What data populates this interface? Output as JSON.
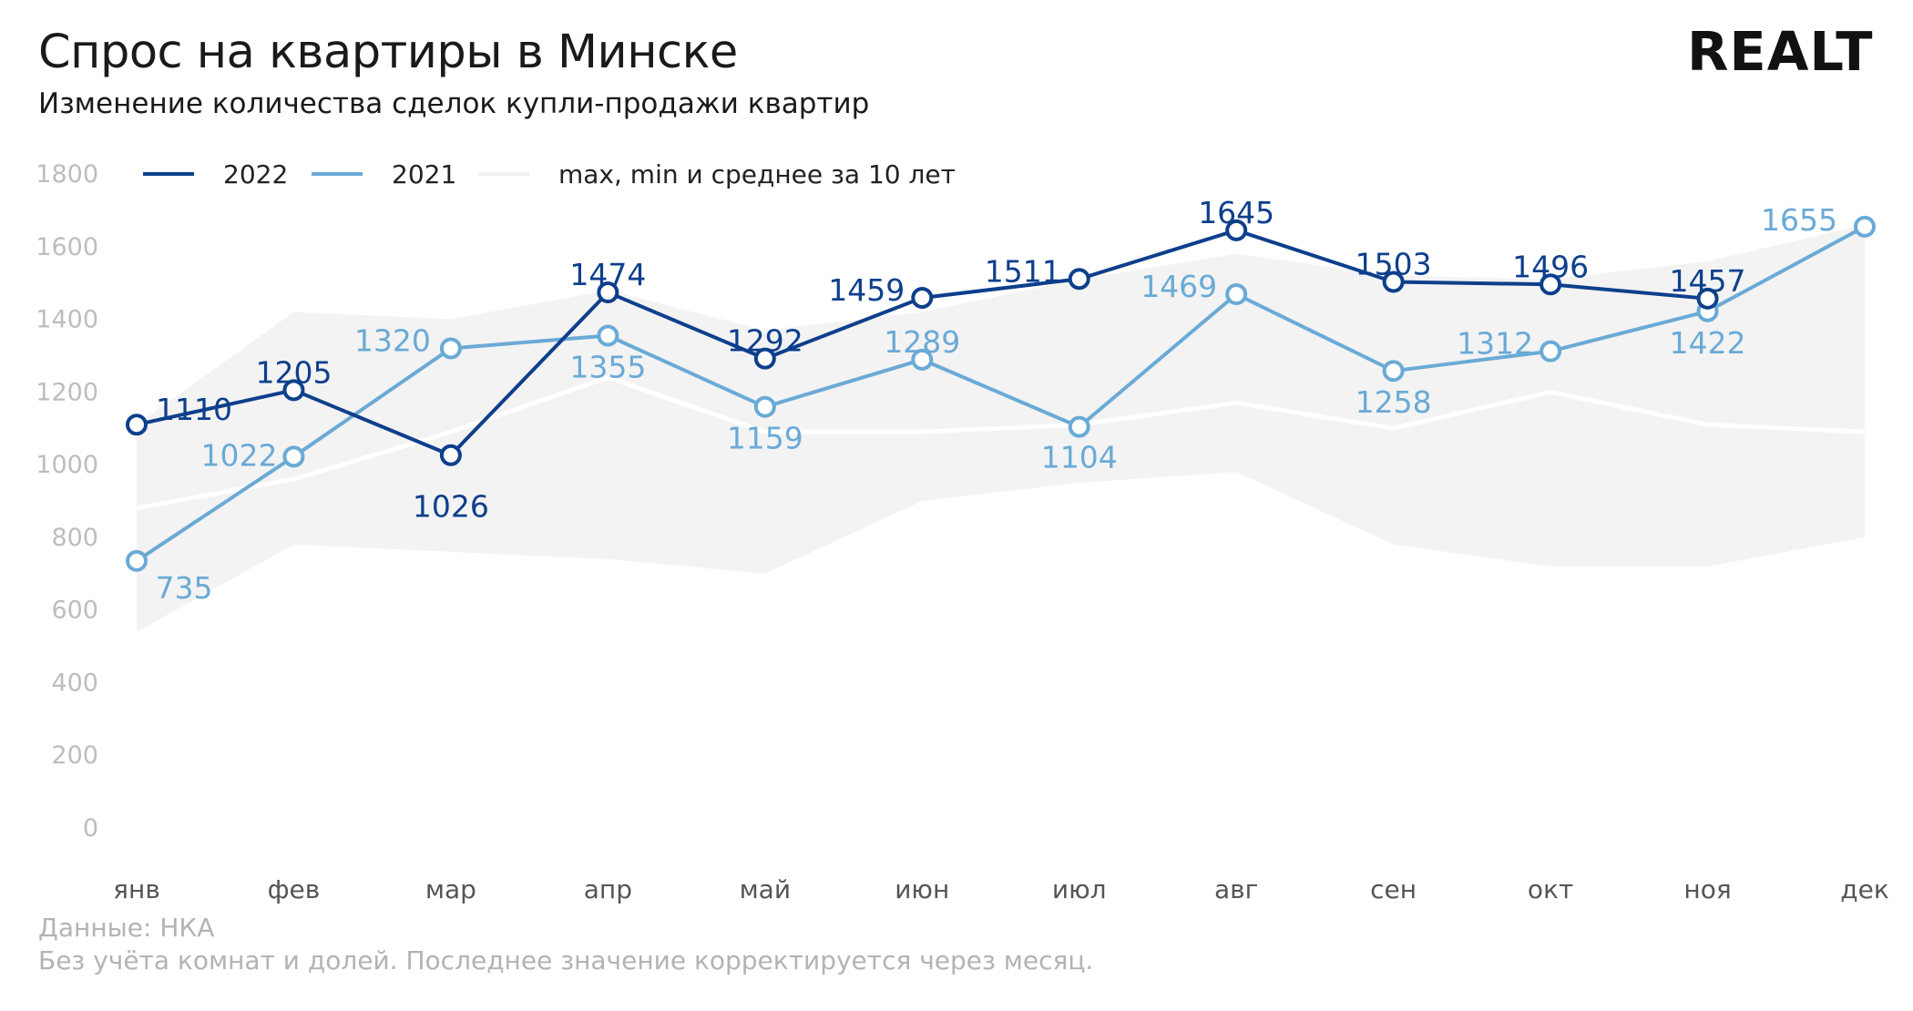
{
  "header": {
    "title": "Спрос на квартиры в Минске",
    "subtitle": "Изменение количества сделок купли-продажи квартир",
    "logo": "REALT"
  },
  "footer": {
    "source": "Данные: НКА",
    "note": "Без учёта комнат и долей. Последнее значение корректируется через месяц."
  },
  "colors": {
    "series_2022": "#0d3f8c",
    "series_2021": "#6aaad6",
    "band": "#f3f3f3",
    "mean_line": "#ffffff"
  },
  "chart_data": {
    "type": "line",
    "title": "Спрос на квартиры в Минске",
    "subtitle": "Изменение количества сделок купли-продажи квартир",
    "categories": [
      "янв",
      "фев",
      "мар",
      "апр",
      "май",
      "июн",
      "июл",
      "авг",
      "сен",
      "окт",
      "ноя",
      "дек"
    ],
    "ylim": [
      0,
      1800
    ],
    "yticks": [
      0,
      200,
      400,
      600,
      800,
      1000,
      1200,
      1400,
      1600,
      1800
    ],
    "grid": false,
    "legend_position": "top-left",
    "legend": [
      "2022",
      "2021",
      "max, min и среднее за 10 лет"
    ],
    "series": [
      {
        "name": "2022",
        "values": [
          1110,
          1205,
          1026,
          1474,
          1292,
          1459,
          1511,
          1645,
          1503,
          1496,
          1457,
          null
        ]
      },
      {
        "name": "2021",
        "values": [
          735,
          1022,
          1320,
          1355,
          1159,
          1289,
          1104,
          1469,
          1258,
          1312,
          1422,
          1655
        ]
      }
    ],
    "band_10y": {
      "name": "max, min и среднее за 10 лет",
      "max": [
        1110,
        1420,
        1400,
        1480,
        1370,
        1420,
        1510,
        1580,
        1520,
        1510,
        1560,
        1660
      ],
      "min": [
        540,
        780,
        760,
        740,
        700,
        900,
        950,
        980,
        780,
        720,
        720,
        800
      ],
      "mean": [
        880,
        960,
        1090,
        1240,
        1090,
        1090,
        1110,
        1170,
        1100,
        1200,
        1110,
        1090
      ]
    }
  }
}
